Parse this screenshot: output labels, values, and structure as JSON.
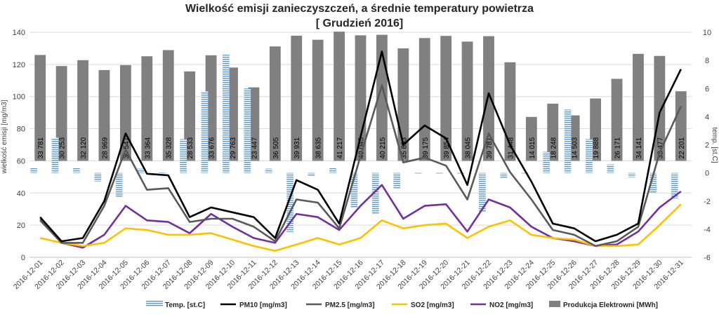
{
  "chart_data": {
    "type": "bar+line",
    "title": "Wielkość emisji zanieczyszczeń, a średnie temperatury powietrza",
    "subtitle": "[ Grudzień 2016]",
    "ylabel_left": "wielkość emisji [mg/m3]",
    "ylabel_right": "temp. [st.C]",
    "ylim_left": [
      0,
      140
    ],
    "yticks_left": [
      0,
      20,
      40,
      60,
      80,
      100,
      120,
      140
    ],
    "ylim_right": [
      -6,
      10
    ],
    "yticks_right": [
      -6,
      -4,
      -2,
      0,
      2,
      4,
      6,
      8,
      10
    ],
    "gridlines": true,
    "legend_position": "bottom",
    "categories": [
      "2016-12-01",
      "2016-12-02",
      "2016-12-03",
      "2016-12-04",
      "2016-12-05",
      "2016-12-06",
      "2016-12-07",
      "2016-12-08",
      "2016-12-09",
      "2016-12-10",
      "2016-12-11",
      "2016-12-12",
      "2016-12-13",
      "2016-12-14",
      "2016-12-15",
      "2016-12-16",
      "2016-12-17",
      "2016-12-18",
      "2016-12-19",
      "2016-12-20",
      "2016-12-21",
      "2016-12-22",
      "2016-12-23",
      "2016-12-24",
      "2016-12-25",
      "2016-12-26",
      "2016-12-27",
      "2016-12-28",
      "2016-12-29",
      "2016-12-30",
      "2016-12-31"
    ],
    "production": {
      "name": "Produkcja Elektrowni [MWh]",
      "color": "#808080",
      "labels": [
        "33 781",
        "30 253",
        "32 120",
        "28 969",
        "30 547",
        "33 364",
        "35 328",
        "28 533",
        "33 676",
        "29 763",
        "23 447",
        "36 505",
        "39 931",
        "38 635",
        "41 217",
        "40 045",
        "40 215",
        "35 893",
        "39 175",
        "39 854",
        "38 045",
        "39 781",
        "31 448",
        "14 015",
        "18 248",
        "14 503",
        "19 888",
        "26 171",
        "34 141",
        "33 477",
        "22 201"
      ],
      "values": [
        33781,
        30253,
        32120,
        28969,
        30547,
        33364,
        35328,
        28533,
        33676,
        29763,
        23447,
        36505,
        39931,
        38635,
        41217,
        40045,
        40215,
        35893,
        39175,
        39854,
        38045,
        39781,
        31448,
        14015,
        18248,
        14503,
        19888,
        26171,
        34141,
        33477,
        22201
      ]
    },
    "temperature": {
      "name": "Temp. [st.C]",
      "color": "#5B9BD5",
      "values": [
        0.4,
        2.5,
        0.4,
        -0.6,
        -1.7,
        0.3,
        0.1,
        2.4,
        5.8,
        8.4,
        6.0,
        0.3,
        -4.2,
        -0.2,
        0.4,
        -2.5,
        -2.9,
        -1.1,
        -0.1,
        -0.1,
        -0.1,
        -2.8,
        -0.4,
        0.0,
        1.5,
        4.5,
        2.4,
        0.6,
        -0.3,
        -1.4,
        -1.8
      ]
    },
    "series": [
      {
        "name": "PM10 [mg/m3]",
        "color": "#000000",
        "values": [
          25,
          10,
          12,
          35,
          77,
          52,
          51,
          25,
          31,
          28,
          25,
          12,
          48,
          42,
          21,
          75,
          128,
          70,
          82,
          74,
          45,
          102,
          70,
          47,
          21,
          18,
          10,
          14,
          21,
          90,
          117
        ]
      },
      {
        "name": "PM2.5 [mg/m3]",
        "color": "#595959",
        "values": [
          23,
          9,
          9,
          32,
          67,
          42,
          43,
          22,
          24,
          24,
          19,
          10,
          36,
          34,
          18,
          63,
          107,
          59,
          62,
          57,
          36,
          77,
          53,
          36,
          17,
          14,
          7,
          10,
          19,
          65,
          94
        ]
      },
      {
        "name": "SO2 [mg/m3]",
        "color": "#FFC000",
        "values": [
          12,
          9,
          7,
          9,
          18,
          17,
          14,
          14,
          15,
          11,
          7,
          4,
          8,
          12,
          8,
          12,
          23,
          18,
          20,
          21,
          12,
          19,
          23,
          14,
          12,
          11,
          7,
          7,
          8,
          20,
          33
        ]
      },
      {
        "name": "NO2 [mg/m3]",
        "color": "#7030A0",
        "values": [
          24,
          9,
          6,
          14,
          32,
          23,
          22,
          15,
          27,
          19,
          12,
          9,
          27,
          25,
          17,
          32,
          45,
          24,
          32,
          33,
          16,
          36,
          31,
          19,
          12,
          10,
          7,
          8,
          16,
          31,
          41
        ]
      }
    ]
  }
}
